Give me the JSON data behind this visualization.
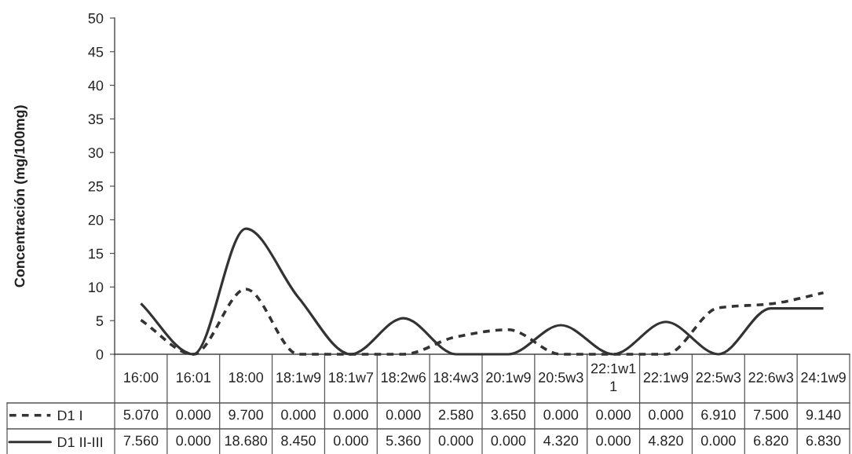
{
  "chart_data": {
    "type": "line",
    "ylabel": "Concentración (mg/100mg)",
    "categories": [
      "16:00",
      "16:01",
      "18:00",
      "18:1w9",
      "18:1w7",
      "18:2w6",
      "18:4w3",
      "20:1w9",
      "20:5w3",
      "22:1w1\n1",
      "22:1w9",
      "22:5w3",
      "22:6w3",
      "24:1w9"
    ],
    "ylim": [
      0,
      50
    ],
    "yticks": [
      0,
      5,
      10,
      15,
      20,
      25,
      30,
      35,
      40,
      45,
      50
    ],
    "legend": "bottom left",
    "series": [
      {
        "name": "D1 I",
        "color": "#333333",
        "line_style": "dashed",
        "values": [
          5.07,
          0,
          9.7,
          0,
          0,
          0,
          2.58,
          3.65,
          0,
          0,
          0,
          6.91,
          7.5,
          9.14
        ],
        "value_labels": [
          "5.070",
          "0.000",
          "9.700",
          "0.000",
          "0.000",
          "0.000",
          "2.580",
          "3.650",
          "0.000",
          "0.000",
          "0.000",
          "6.910",
          "7.500",
          "9.140"
        ]
      },
      {
        "name": "D1 II-III",
        "color": "#333333",
        "line_style": "solid",
        "values": [
          7.56,
          0,
          18.68,
          8.45,
          0,
          5.36,
          0,
          0,
          4.32,
          0,
          4.82,
          0,
          6.82,
          6.83
        ],
        "value_labels": [
          "7.560",
          "0.000",
          "18.680",
          "8.450",
          "0.000",
          "5.360",
          "0.000",
          "0.000",
          "4.320",
          "0.000",
          "4.820",
          "0.000",
          "6.820",
          "6.830"
        ]
      }
    ]
  }
}
